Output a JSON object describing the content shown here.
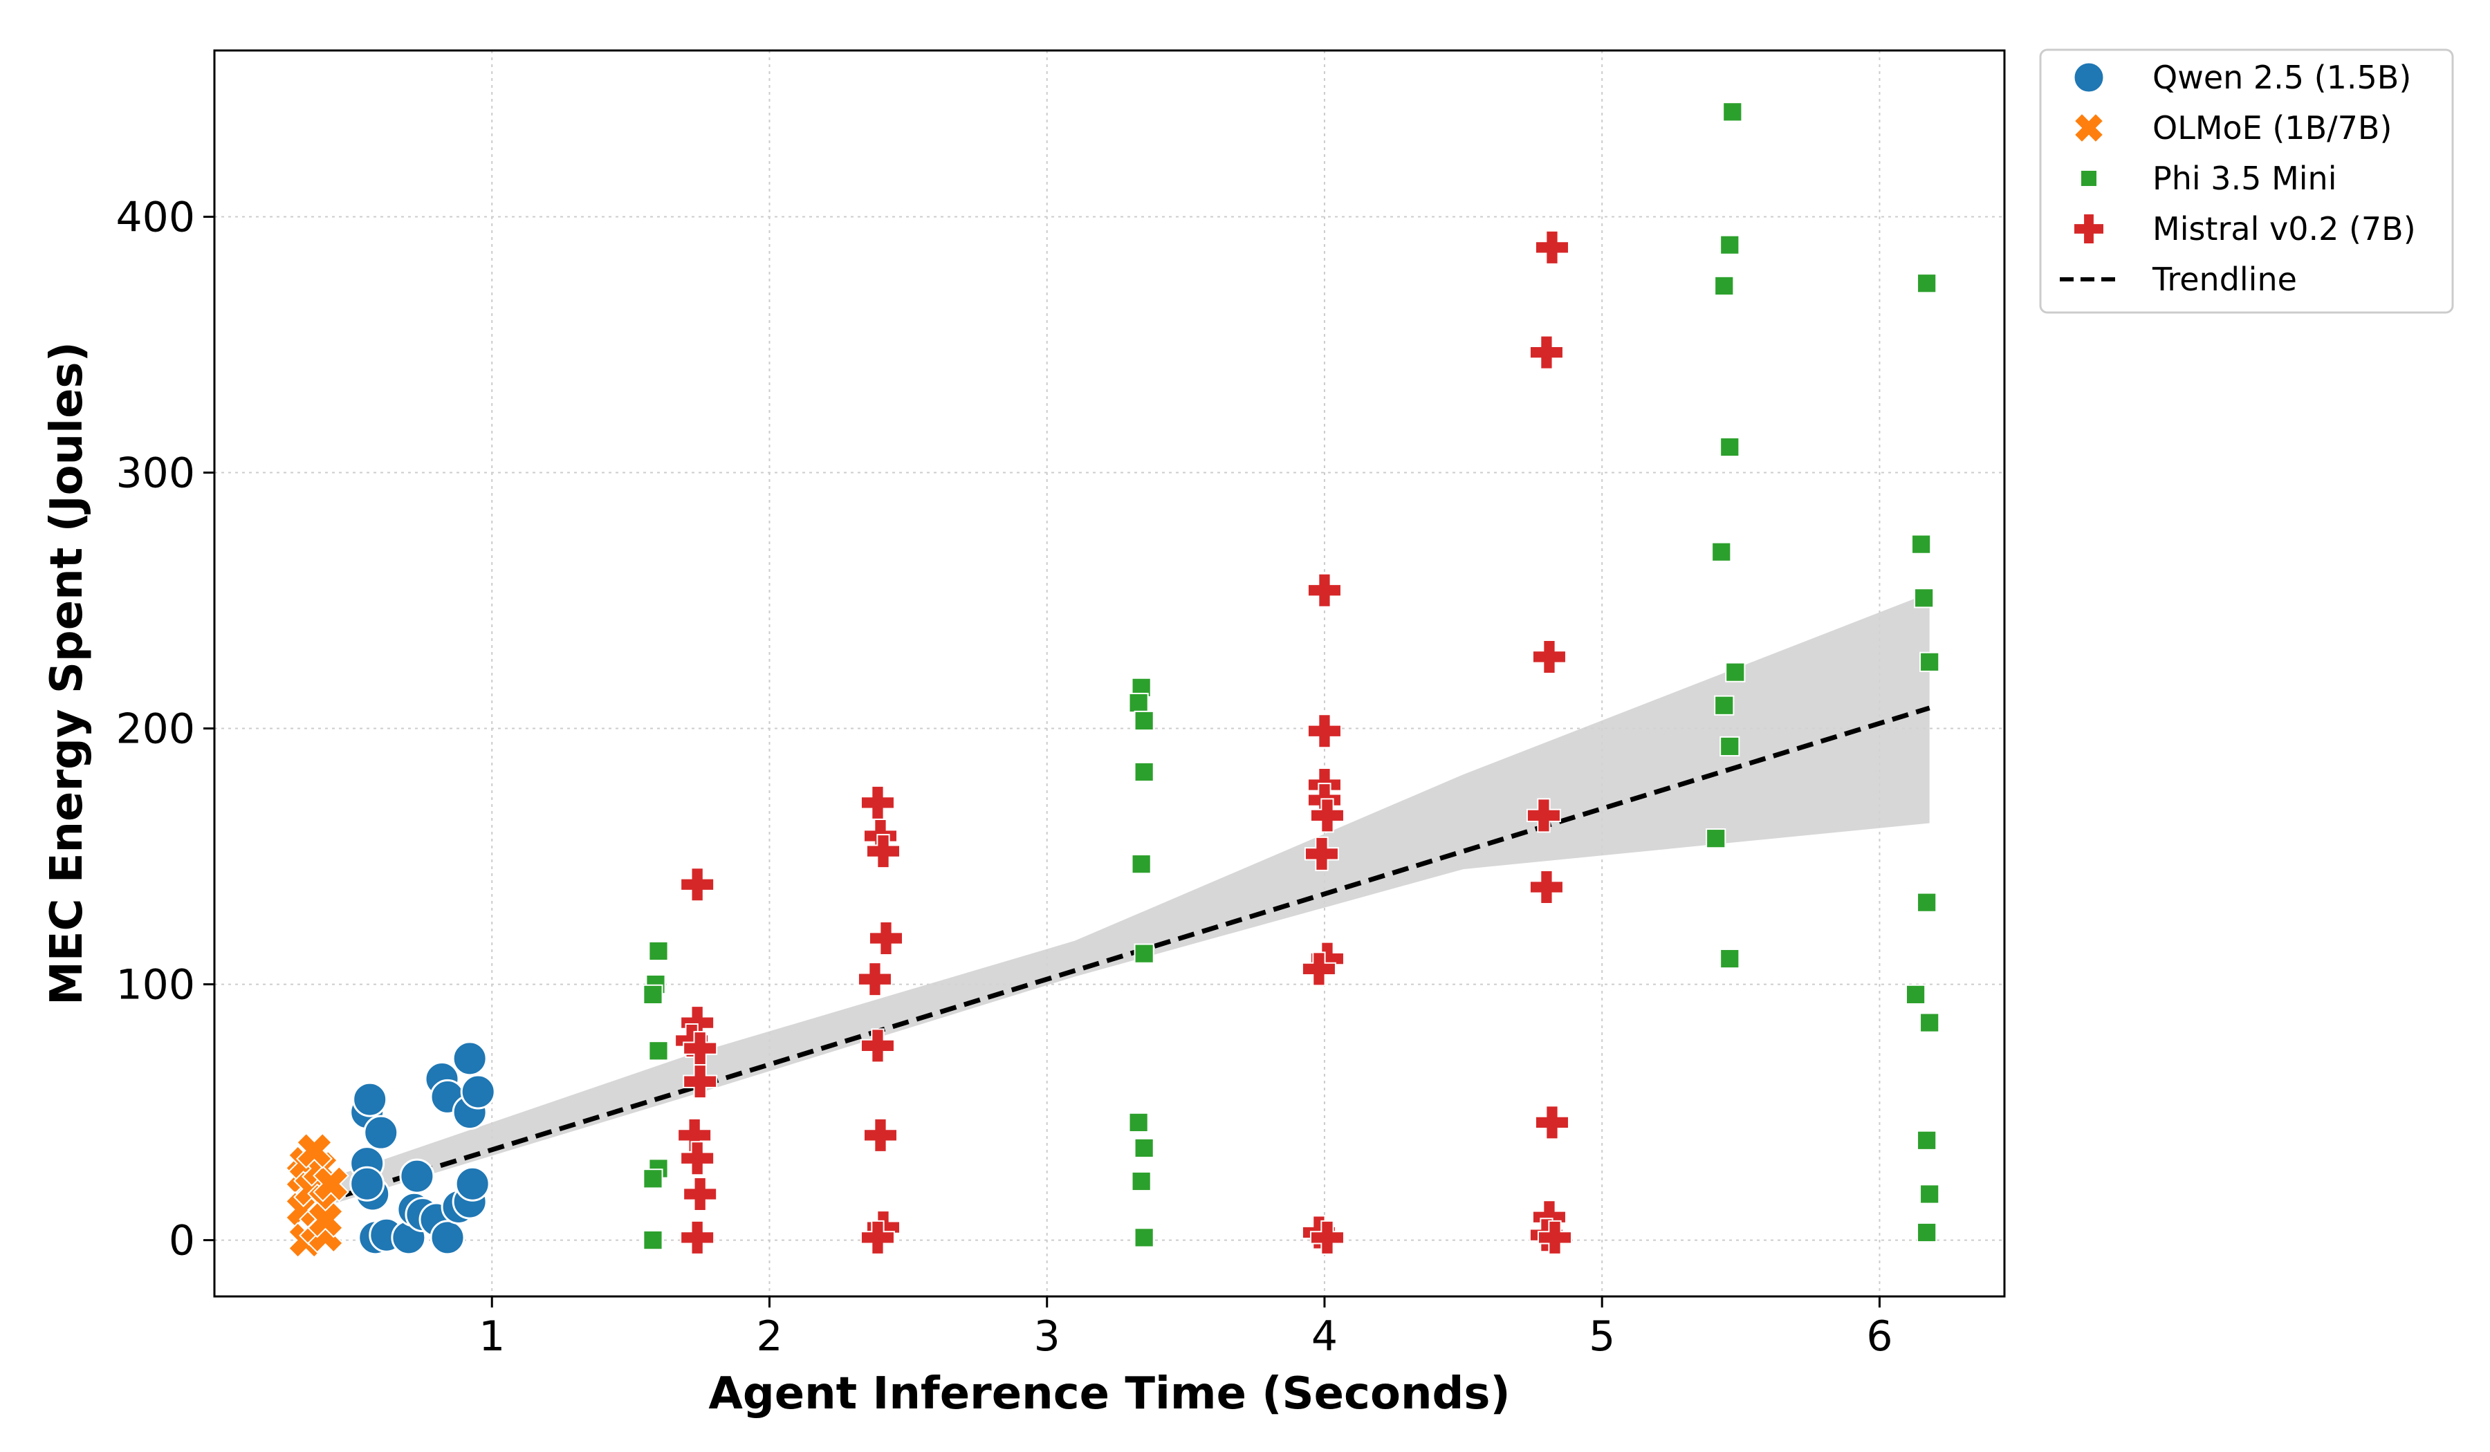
{
  "chart_data": {
    "type": "scatter",
    "title": "",
    "xlabel": "Agent Inference Time (Seconds)",
    "ylabel": "MEC Energy Spent (Joules)",
    "xlim": [
      0.0,
      6.45
    ],
    "ylim": [
      -22,
      465
    ],
    "xticks": [
      1,
      2,
      3,
      4,
      5,
      6
    ],
    "yticks": [
      0,
      100,
      200,
      300,
      400
    ],
    "grid": true,
    "legend_position": "outside-top-right",
    "series": [
      {
        "name": "Qwen 2.5 (1.5B)",
        "marker": "circle",
        "color": "#1f77b4",
        "points": [
          [
            0.55,
            50
          ],
          [
            0.56,
            55
          ],
          [
            0.55,
            30
          ],
          [
            0.6,
            42
          ],
          [
            0.57,
            18
          ],
          [
            0.55,
            22
          ],
          [
            0.58,
            1
          ],
          [
            0.62,
            2
          ],
          [
            0.7,
            1
          ],
          [
            0.72,
            12
          ],
          [
            0.73,
            25
          ],
          [
            0.75,
            10
          ],
          [
            0.8,
            8
          ],
          [
            0.82,
            63
          ],
          [
            0.84,
            56
          ],
          [
            0.84,
            1
          ],
          [
            0.88,
            13
          ],
          [
            0.92,
            71
          ],
          [
            0.92,
            50
          ],
          [
            0.92,
            15
          ],
          [
            0.93,
            22
          ],
          [
            0.95,
            58
          ]
        ]
      },
      {
        "name": "OLMoE (1B/7B)",
        "marker": "x",
        "color": "#ff7f0e",
        "points": [
          [
            0.32,
            25
          ],
          [
            0.33,
            30
          ],
          [
            0.32,
            12
          ],
          [
            0.33,
            0
          ],
          [
            0.35,
            20
          ],
          [
            0.37,
            5
          ],
          [
            0.38,
            28
          ],
          [
            0.4,
            15
          ],
          [
            0.4,
            2
          ],
          [
            0.42,
            22
          ],
          [
            0.4,
            8
          ],
          [
            0.36,
            35
          ]
        ]
      },
      {
        "name": "Phi 3.5 Mini",
        "marker": "square",
        "color": "#2ca02c",
        "points": [
          [
            1.6,
            113
          ],
          [
            1.59,
            100
          ],
          [
            1.58,
            96
          ],
          [
            1.6,
            74
          ],
          [
            1.6,
            28
          ],
          [
            1.58,
            24
          ],
          [
            1.58,
            0
          ],
          [
            3.34,
            216
          ],
          [
            3.33,
            210
          ],
          [
            3.35,
            203
          ],
          [
            3.35,
            183
          ],
          [
            3.34,
            147
          ],
          [
            3.35,
            112
          ],
          [
            3.33,
            46
          ],
          [
            3.35,
            36
          ],
          [
            3.34,
            23
          ],
          [
            3.35,
            1
          ],
          [
            5.47,
            441
          ],
          [
            5.46,
            389
          ],
          [
            5.44,
            373
          ],
          [
            5.46,
            310
          ],
          [
            5.43,
            269
          ],
          [
            5.48,
            222
          ],
          [
            5.44,
            209
          ],
          [
            5.46,
            193
          ],
          [
            5.41,
            157
          ],
          [
            5.46,
            110
          ],
          [
            6.17,
            374
          ],
          [
            6.15,
            272
          ],
          [
            6.16,
            251
          ],
          [
            6.18,
            226
          ],
          [
            6.17,
            132
          ],
          [
            6.13,
            96
          ],
          [
            6.18,
            85
          ],
          [
            6.17,
            39
          ],
          [
            6.18,
            18
          ],
          [
            6.17,
            3
          ]
        ]
      },
      {
        "name": "Mistral v0.2 (7B)",
        "marker": "plus",
        "color": "#d62728",
        "points": [
          [
            1.74,
            139
          ],
          [
            1.74,
            85
          ],
          [
            1.72,
            78
          ],
          [
            1.75,
            75
          ],
          [
            1.75,
            62
          ],
          [
            1.73,
            41
          ],
          [
            1.74,
            32
          ],
          [
            1.75,
            18
          ],
          [
            1.74,
            1
          ],
          [
            2.39,
            171
          ],
          [
            2.4,
            158
          ],
          [
            2.41,
            152
          ],
          [
            2.42,
            118
          ],
          [
            2.38,
            102
          ],
          [
            2.39,
            76
          ],
          [
            2.4,
            41
          ],
          [
            2.41,
            5
          ],
          [
            2.39,
            1
          ],
          [
            4.0,
            254
          ],
          [
            4.0,
            199
          ],
          [
            4.0,
            178
          ],
          [
            4.0,
            172
          ],
          [
            4.01,
            166
          ],
          [
            3.99,
            151
          ],
          [
            4.01,
            110
          ],
          [
            3.98,
            106
          ],
          [
            3.98,
            3
          ],
          [
            4.01,
            1
          ],
          [
            4.82,
            388
          ],
          [
            4.8,
            347
          ],
          [
            4.81,
            228
          ],
          [
            4.79,
            166
          ],
          [
            4.8,
            138
          ],
          [
            4.82,
            46
          ],
          [
            4.81,
            9
          ],
          [
            4.8,
            2
          ],
          [
            4.83,
            1
          ]
        ]
      }
    ],
    "trendline": {
      "name": "Trendline",
      "style": "dashed",
      "color": "#000000",
      "x": [
        0.3,
        6.18
      ],
      "y": [
        12,
        208
      ],
      "confidence_band": {
        "color": "#d3d3d3",
        "x": [
          0.3,
          1.7,
          3.1,
          4.5,
          6.18
        ],
        "lower": [
          10,
          56,
          103,
          145,
          163
        ],
        "upper": [
          20,
          72,
          117,
          182,
          253
        ]
      }
    }
  }
}
